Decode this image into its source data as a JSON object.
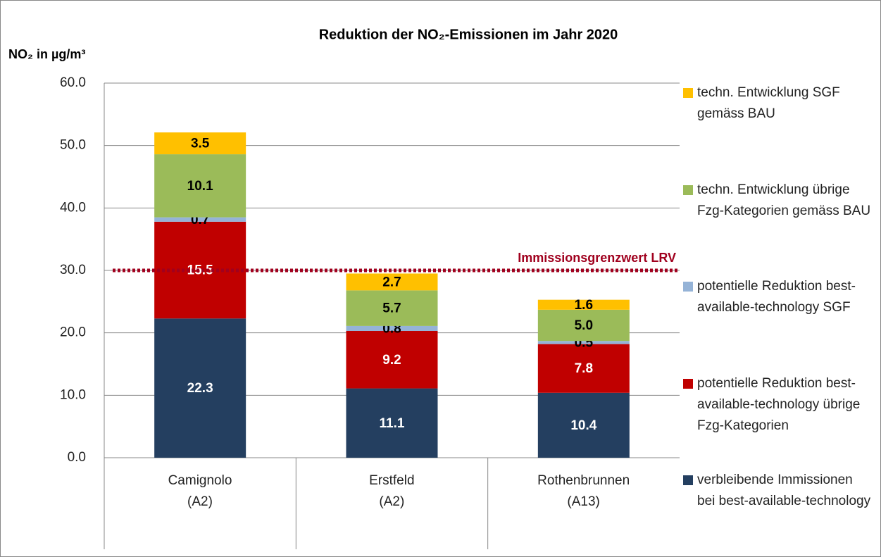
{
  "chart_data": {
    "type": "stacked_bar",
    "title": "Reduktion der NO₂-Emissionen im Jahr 2020",
    "y_label": "NO₂ in µg/m³",
    "categories": [
      "Camignolo\n(A2)",
      "Erstfeld\n(A2)",
      "Rothenbrunnen\n(A13)"
    ],
    "series": [
      {
        "name": "verbleibende Immissionen bei best-available-technology",
        "color": "#243f60",
        "label_color": "#ffffff",
        "values": [
          22.3,
          11.1,
          10.4
        ]
      },
      {
        "name": "potentielle Reduktion best-available-technology übrige Fzg-Kategorien",
        "color": "#c00000",
        "label_color": "#ffffff",
        "values": [
          15.5,
          9.2,
          7.8
        ]
      },
      {
        "name": "potentielle Reduktion best-available-technology SGF",
        "color": "#95b3d7",
        "label_color": "#000000",
        "values": [
          0.7,
          0.8,
          0.5
        ]
      },
      {
        "name": "techn. Entwicklung übrige Fzg-Kategorien gemäss BAU",
        "color": "#9bbb59",
        "label_color": "#000000",
        "values": [
          10.1,
          5.7,
          5.0
        ],
        "value_labels": [
          "10.1",
          "5.7",
          "5.0"
        ]
      },
      {
        "name": "techn. Entwicklung SGF gemäss BAU",
        "color": "#ffc000",
        "label_color": "#000000",
        "values": [
          3.5,
          2.7,
          1.6
        ]
      }
    ],
    "ylim": [
      0,
      60
    ],
    "yticks": [
      {
        "value": 0,
        "label": "0.0"
      },
      {
        "value": 10,
        "label": "10.0"
      },
      {
        "value": 20,
        "label": "20.0"
      },
      {
        "value": 30,
        "label": "30.0"
      },
      {
        "value": 40,
        "label": "40.0"
      },
      {
        "value": 50,
        "label": "50.0"
      },
      {
        "value": 60,
        "label": "60.0"
      }
    ],
    "grid": true,
    "reference_line": {
      "value": 30,
      "label": "Immissionsgrenzwert LRV",
      "color": "#a0001e"
    }
  }
}
